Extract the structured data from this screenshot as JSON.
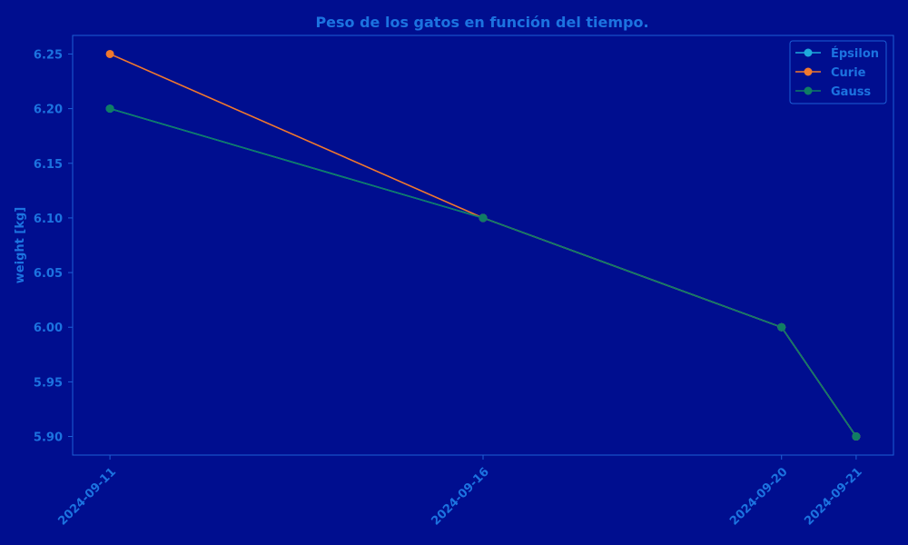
{
  "colors": {
    "background": "#000e8f",
    "text": "#1c73e0",
    "axes_edge": "#1c5fd6"
  },
  "chart_data": {
    "type": "line",
    "title": "Peso de los gatos en función del tiempo.",
    "xlabel": "",
    "ylabel": "weight [kg]",
    "x": [
      "2024-09-11",
      "2024-09-16",
      "2024-09-20",
      "2024-09-21"
    ],
    "ylim": [
      5.883,
      6.267
    ],
    "yticks": [
      "5.90",
      "5.95",
      "6.00",
      "6.05",
      "6.10",
      "6.15",
      "6.20",
      "6.25"
    ],
    "ytick_values": [
      5.9,
      5.95,
      6.0,
      6.05,
      6.1,
      6.15,
      6.2,
      6.25
    ],
    "grid": false,
    "legend_position": "top-right",
    "series": [
      {
        "name": "Épsilon",
        "color": "#1eaadc",
        "values": [
          6.2,
          6.1,
          6.0,
          5.9
        ]
      },
      {
        "name": "Curie",
        "color": "#f0782d",
        "values": [
          6.25,
          6.1,
          6.0,
          5.9
        ]
      },
      {
        "name": "Gauss",
        "color": "#0f7d64",
        "values": [
          6.2,
          6.1,
          6.0,
          5.9
        ]
      }
    ]
  }
}
